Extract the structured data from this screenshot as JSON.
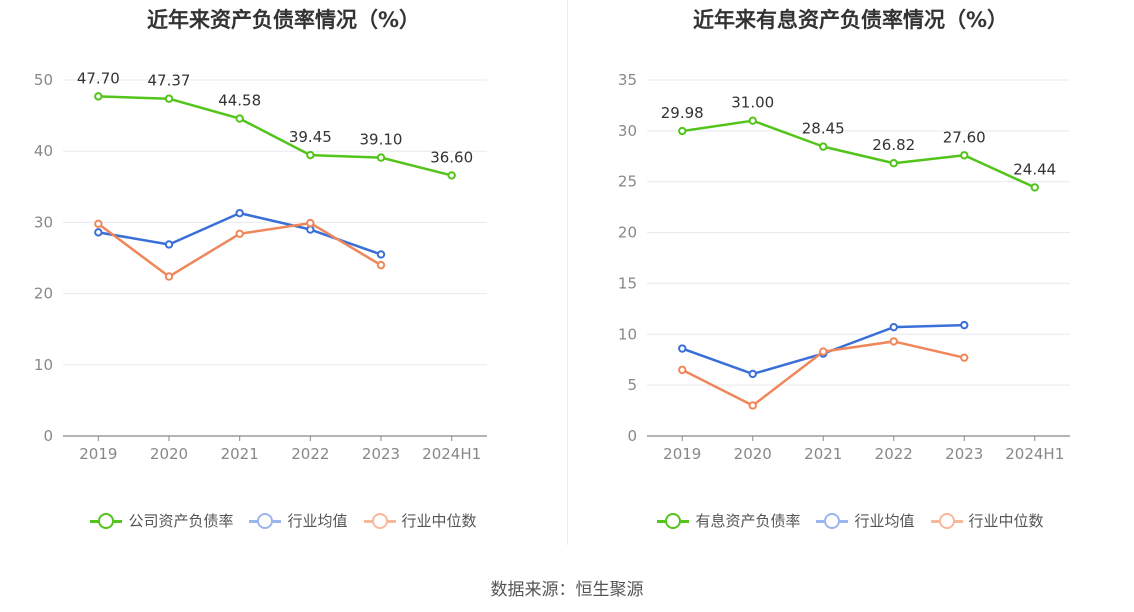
{
  "source": "数据来源：恒生聚源",
  "chart_data": [
    {
      "type": "line",
      "title": "近年来资产负债率情况（%）",
      "categories": [
        "2019",
        "2020",
        "2021",
        "2022",
        "2023",
        "2024H1"
      ],
      "ylim": [
        0,
        50
      ],
      "yticks": [
        0,
        10,
        20,
        30,
        40,
        50
      ],
      "grid": true,
      "legend_position": "bottom",
      "series": [
        {
          "name": "公司资产负债率",
          "color": "#52c41a",
          "values": [
            47.7,
            47.37,
            44.58,
            39.45,
            39.1,
            36.6
          ],
          "labels": [
            "47.70",
            "47.37",
            "44.58",
            "39.45",
            "39.10",
            "36.60"
          ]
        },
        {
          "name": "行业均值",
          "color": "#3a6fd8",
          "values": [
            28.6,
            26.9,
            31.3,
            29.0,
            25.5,
            null
          ]
        },
        {
          "name": "行业中位数",
          "color": "#f0875a",
          "values": [
            29.8,
            22.4,
            28.4,
            29.9,
            24.0,
            null
          ]
        }
      ]
    },
    {
      "type": "line",
      "title": "近年来有息资产负债率情况（%）",
      "categories": [
        "2019",
        "2020",
        "2021",
        "2022",
        "2023",
        "2024H1"
      ],
      "ylim": [
        0,
        35
      ],
      "yticks": [
        0,
        5,
        10,
        15,
        20,
        25,
        30,
        35
      ],
      "grid": true,
      "legend_position": "bottom",
      "series": [
        {
          "name": "有息资产负债率",
          "color": "#52c41a",
          "values": [
            29.98,
            31.0,
            28.45,
            26.82,
            27.6,
            24.44
          ],
          "labels": [
            "29.98",
            "31.00",
            "28.45",
            "26.82",
            "27.60",
            "24.44"
          ]
        },
        {
          "name": "行业均值",
          "color": "#3a6fd8",
          "values": [
            8.6,
            6.1,
            8.1,
            10.7,
            10.9,
            null
          ]
        },
        {
          "name": "行业中位数",
          "color": "#f0875a",
          "values": [
            6.5,
            3.0,
            8.3,
            9.3,
            7.7,
            null
          ]
        }
      ]
    }
  ]
}
